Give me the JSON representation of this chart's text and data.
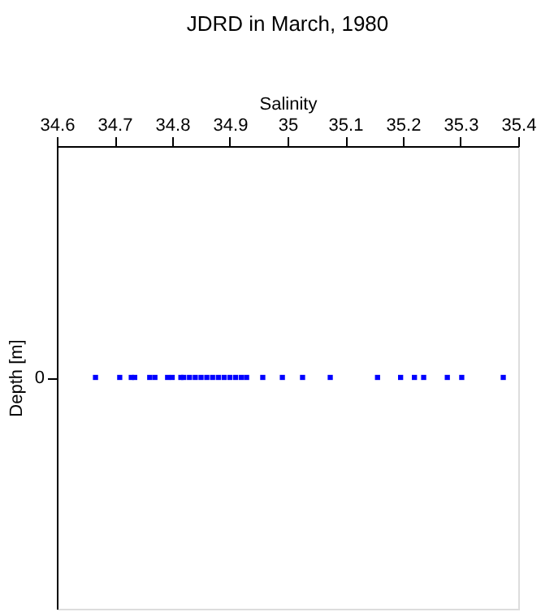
{
  "chart_data": {
    "type": "scatter",
    "orientation": "horizontal",
    "title": "JDRD in March, 1980",
    "xlabel": "Salinity",
    "ylabel": "Depth [m]",
    "categories": [
      "0"
    ],
    "series": [
      {
        "color": "#0000ff",
        "x": [
          "0",
          "0",
          "0",
          "0",
          "0",
          "0",
          "0",
          "0",
          "0",
          "0",
          "0",
          "0",
          "0",
          "0",
          "0",
          "0",
          "0",
          "0",
          "0",
          "0",
          "0",
          "0",
          "0",
          "0",
          "0",
          "0",
          "0",
          "0",
          "0",
          "0",
          "0",
          "0"
        ],
        "values": [
          34.667,
          34.709,
          34.729,
          34.735,
          34.761,
          34.77,
          34.792,
          34.8,
          34.815,
          34.82,
          34.83,
          34.84,
          34.85,
          34.86,
          34.87,
          34.88,
          34.89,
          34.9,
          34.91,
          34.92,
          34.929,
          34.957,
          34.991,
          35.026,
          35.074,
          35.156,
          35.196,
          35.22,
          35.236,
          35.277,
          35.302,
          35.374
        ]
      }
    ],
    "xlim": [
      34.6,
      35.4
    ],
    "xticks": [
      34.6,
      34.7,
      34.8,
      34.9,
      35,
      35.1,
      35.2,
      35.3,
      35.4
    ],
    "marker": "square",
    "grid": false
  }
}
